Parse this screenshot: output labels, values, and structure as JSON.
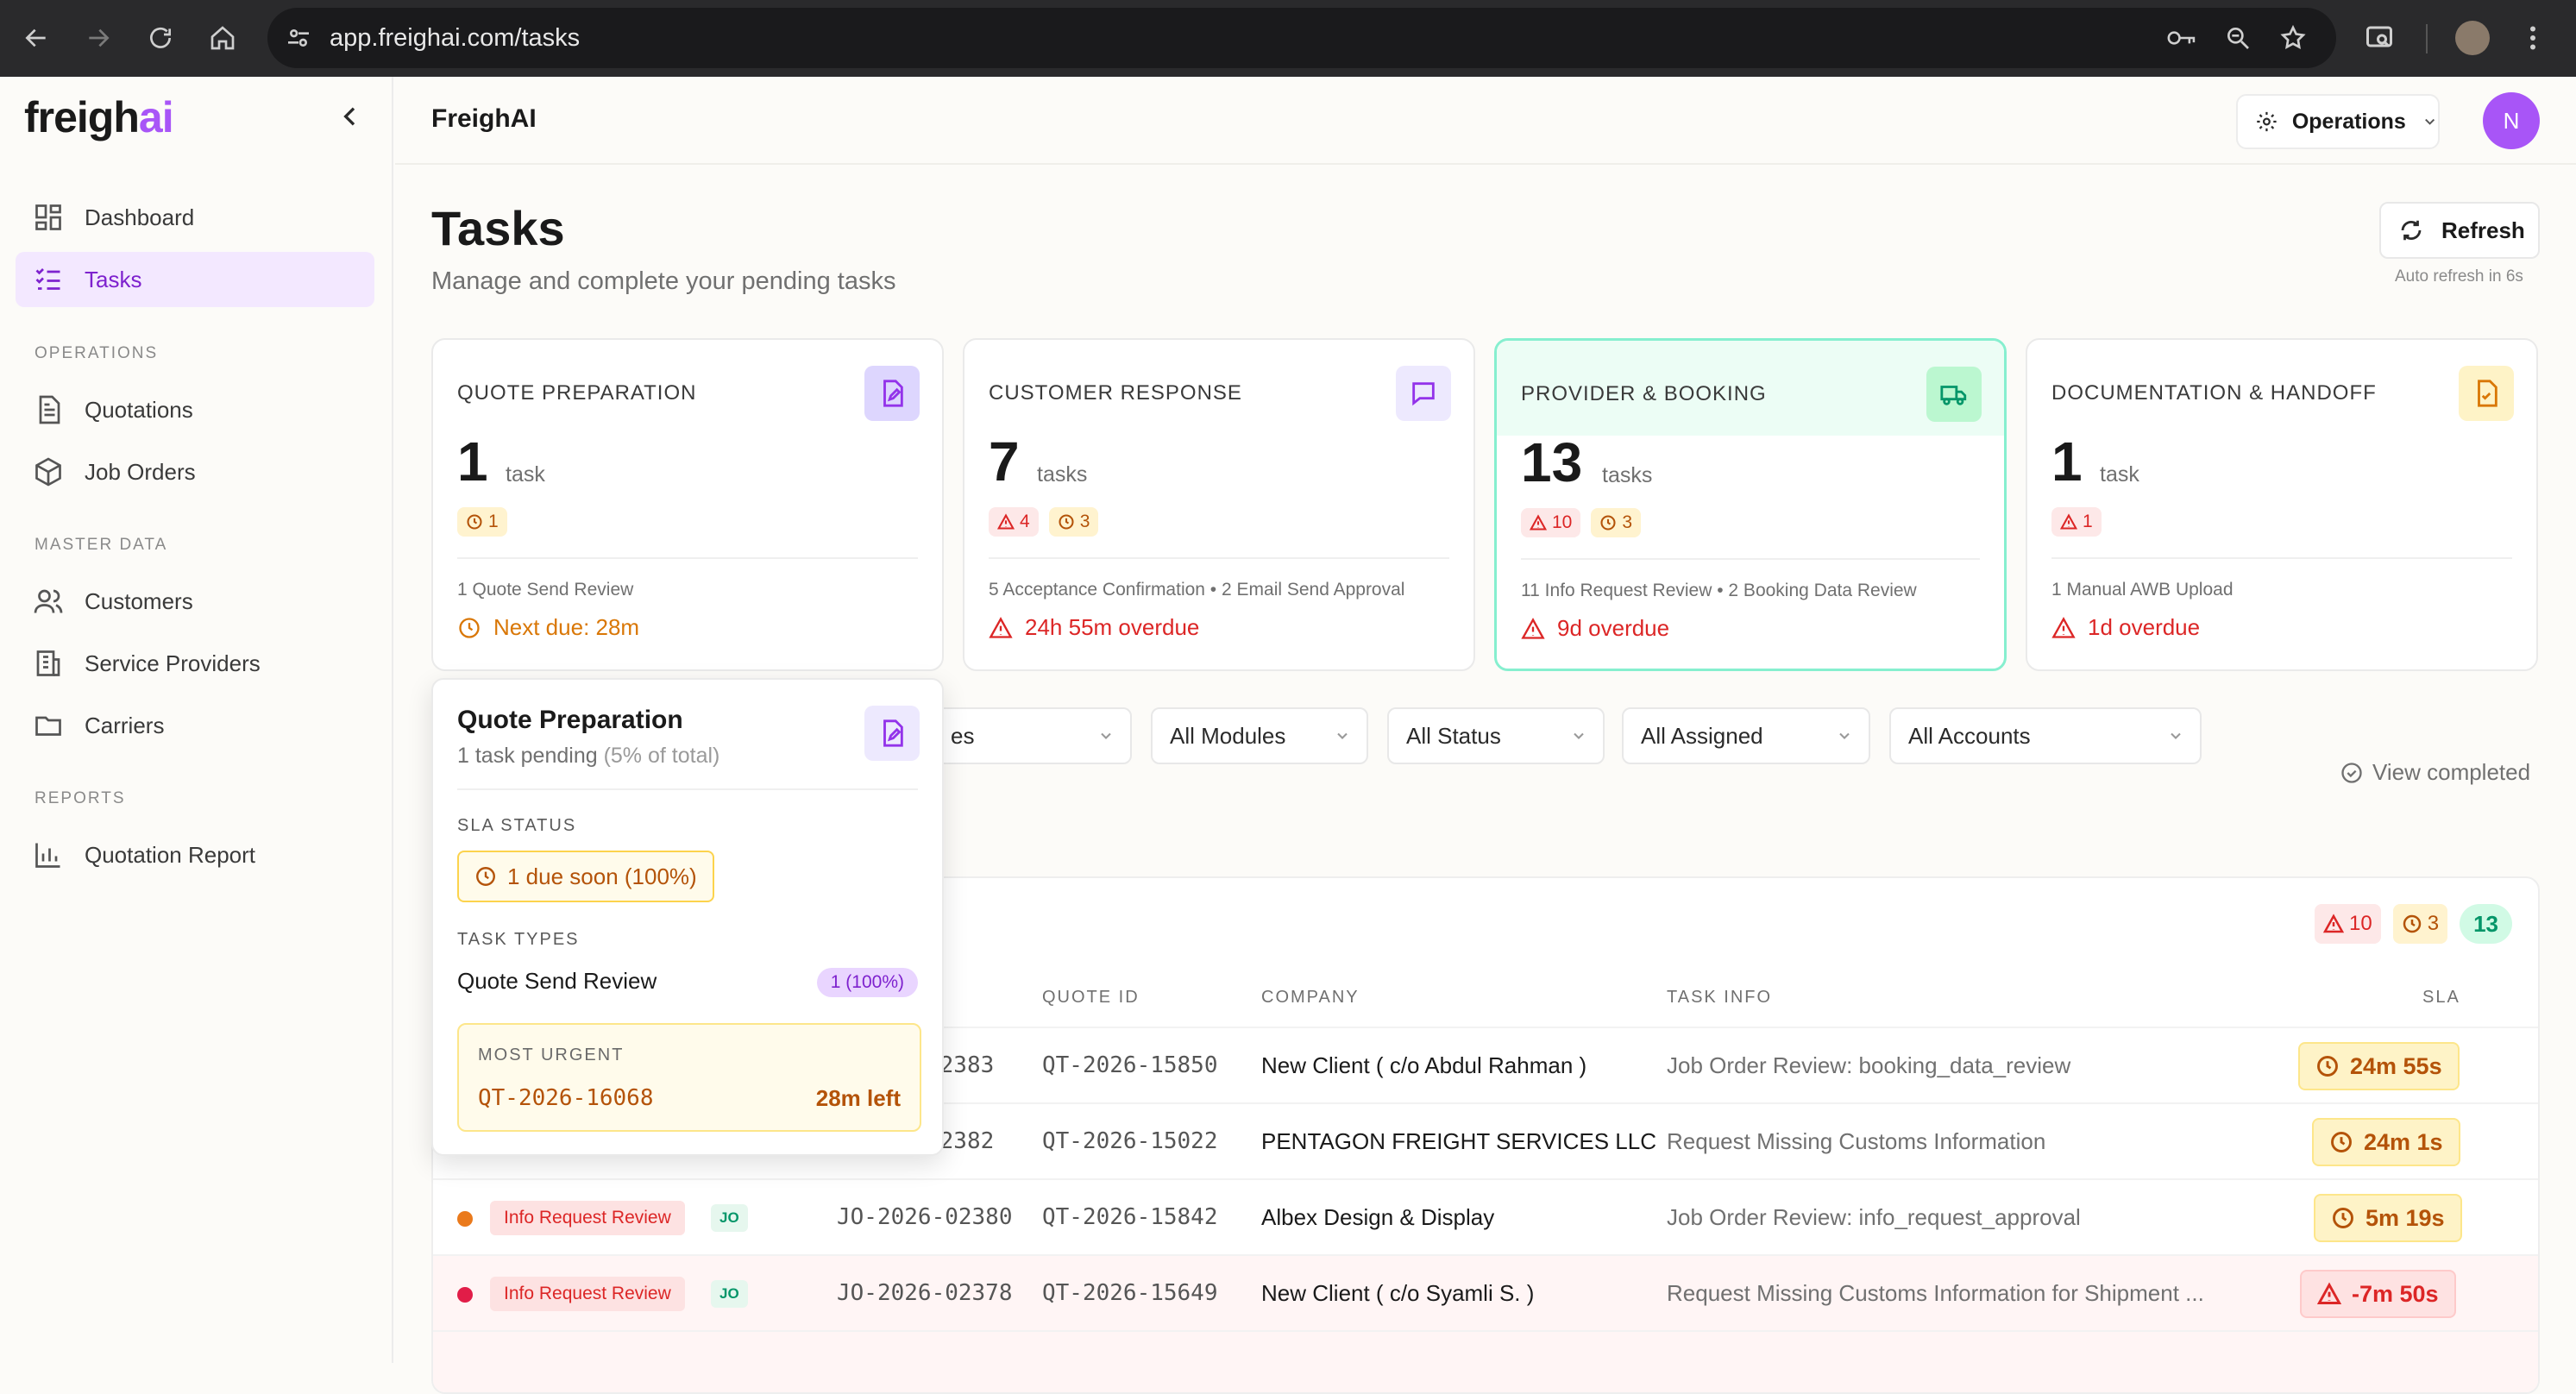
{
  "browser": {
    "url": "app.freighai.com/tasks"
  },
  "sidebar": {
    "logo_main": "freigh",
    "logo_accent": "ai",
    "items": [
      {
        "label": "Dashboard"
      },
      {
        "label": "Tasks"
      },
      {
        "label": "Quotations"
      },
      {
        "label": "Job Orders"
      },
      {
        "label": "Customers"
      },
      {
        "label": "Service Providers"
      },
      {
        "label": "Carriers"
      },
      {
        "label": "Quotation Report"
      }
    ],
    "sections": {
      "operations": "OPERATIONS",
      "master_data": "MASTER DATA",
      "reports": "REPORTS"
    }
  },
  "header": {
    "app_title": "FreighAI",
    "workspace": "Operations",
    "avatar_initial": "N"
  },
  "page": {
    "title": "Tasks",
    "subtitle": "Manage and complete your pending tasks",
    "refresh_label": "Refresh",
    "auto_refresh": "Auto refresh in 6s"
  },
  "cards": [
    {
      "title": "QUOTE PREPARATION",
      "count": "1",
      "unit": "task",
      "badge_amber": "1",
      "desc": "1 Quote Send Review",
      "due": "Next due: 28m"
    },
    {
      "title": "CUSTOMER RESPONSE",
      "count": "7",
      "unit": "tasks",
      "badge_red": "4",
      "badge_amber": "3",
      "desc": "5 Acceptance Confirmation • 2 Email Send Approval",
      "due": "24h 55m overdue"
    },
    {
      "title": "PROVIDER & BOOKING",
      "count": "13",
      "unit": "tasks",
      "badge_red": "10",
      "badge_amber": "3",
      "desc": "11 Info Request Review • 2 Booking Data Review",
      "due": "9d overdue"
    },
    {
      "title": "DOCUMENTATION & HANDOFF",
      "count": "1",
      "unit": "task",
      "badge_red": "1",
      "desc": "1 Manual AWB Upload",
      "due": "1d overdue"
    }
  ],
  "filters": {
    "partial": "es",
    "modules": "All Modules",
    "status": "All Status",
    "assigned": "All Assigned",
    "accounts": "All Accounts",
    "view_completed": "View completed"
  },
  "table": {
    "summary": {
      "red": "10",
      "amber": "3",
      "total": "13"
    },
    "headers": {
      "quote_id": "QUOTE ID",
      "company": "COMPANY",
      "task_info": "TASK INFO",
      "sla": "SLA"
    },
    "rows": [
      {
        "jo_partial": "02383",
        "quote": "QT-2026-15850",
        "company": "New Client ( c/o Abdul Rahman )",
        "info": "Job Order Review: booking_data_review",
        "sla": "24m 55s"
      },
      {
        "jo_partial": "02382",
        "quote": "QT-2026-15022",
        "company": "PENTAGON FREIGHT SERVICES LLC",
        "info": "Request Missing Customs Information",
        "sla": "24m 1s"
      },
      {
        "tag": "Info Request Review",
        "kind": "JO",
        "jo": "JO-2026-02380",
        "quote": "QT-2026-15842",
        "company": "Albex Design & Display",
        "info": "Job Order Review: info_request_approval",
        "sla": "5m 19s"
      },
      {
        "tag": "Info Request Review",
        "kind": "JO",
        "jo": "JO-2026-02378",
        "quote": "QT-2026-15649",
        "company": "New Client ( c/o Syamli S. )",
        "info": "Request Missing Customs Information for Shipment ...",
        "sla": "-7m 50s"
      }
    ]
  },
  "popover": {
    "title": "Quote Preparation",
    "pending": "1 task pending",
    "share": "(5% of total)",
    "sla_label": "SLA STATUS",
    "due_soon": "1 due soon (100%)",
    "types_label": "TASK TYPES",
    "type_name": "Quote Send Review",
    "type_pct": "1 (100%)",
    "urgent_label": "MOST URGENT",
    "urgent_id": "QT-2026-16068",
    "urgent_left": "28m left"
  }
}
